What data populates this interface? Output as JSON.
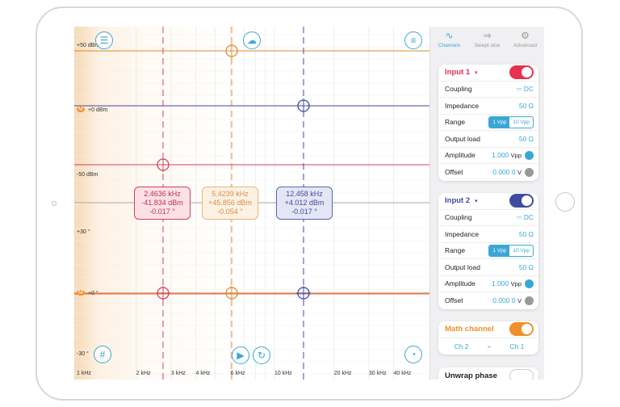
{
  "plot": {
    "y_labels": [
      "+50 dBm",
      "+0 dBm",
      "-50 dBm",
      "+30 °",
      "+0 °",
      "-30 °"
    ],
    "x_ticks": [
      {
        "f": 1,
        "label": "1 kHz"
      },
      {
        "f": 2,
        "label": "2 kHz"
      },
      {
        "f": 3,
        "label": "3 kHz"
      },
      {
        "f": 4,
        "label": "4 kHz"
      },
      {
        "f": 6,
        "label": "6 kHz"
      },
      {
        "f": 10,
        "label": "10 kHz"
      },
      {
        "f": 20,
        "label": "20 kHz"
      },
      {
        "f": 30,
        "label": "30 kHz"
      },
      {
        "f": 40,
        "label": "40 kHz"
      }
    ],
    "markers": [
      {
        "freq": "2.4636 kHz",
        "mag": "-41.834 dBm",
        "phase": "-0.017 °",
        "color": "#d2405a"
      },
      {
        "freq": "5.4239 kHz",
        "mag": "+45.856 dBm",
        "phase": "-0.054 °",
        "color": "#e08a2c"
      },
      {
        "freq": "12.458 kHz",
        "mag": "+4.012 dBm",
        "phase": "-0.017 °",
        "color": "#3f4aa0"
      }
    ],
    "math_badge": "M"
  },
  "tabs": [
    {
      "label": "Channels",
      "icon": "sine-wave-icon"
    },
    {
      "label": "Swept sine",
      "icon": "sweep-arrow-icon"
    },
    {
      "label": "Advanced",
      "icon": "gear-icon"
    }
  ],
  "input1": {
    "title": "Input 1",
    "coupling_label": "Coupling",
    "coupling": "DC",
    "coupling_sym": "⎓",
    "impedance_label": "Impedance",
    "impedance": "50 Ω",
    "range_label": "Range",
    "range_opts": [
      "1 Vpp",
      "10 Vpp"
    ],
    "load_label": "Output load",
    "load": "50 Ω",
    "amp_label": "Amplitude",
    "amp": "1.000",
    "amp_unit": "Vpp",
    "offset_label": "Offset",
    "offset": "0.000 0",
    "offset_unit": "V",
    "color": "#e8304f"
  },
  "input2": {
    "title": "Input 2",
    "coupling_label": "Coupling",
    "coupling": "DC",
    "coupling_sym": "⎓",
    "impedance_label": "Impedance",
    "impedance": "50 Ω",
    "range_label": "Range",
    "range_opts": [
      "1 Vpp",
      "10 Vpp"
    ],
    "load_label": "Output load",
    "load": "50 Ω",
    "amp_label": "Amplitude",
    "amp": "1.000",
    "amp_unit": "Vpp",
    "offset_label": "Offset",
    "offset": "0.000 0",
    "offset_unit": "V",
    "color": "#3f4aa0"
  },
  "math": {
    "title": "Math channel",
    "a": "Ch 2",
    "op": "÷",
    "b": "Ch 1",
    "color": "#f0902a"
  },
  "unwrap": {
    "label": "Unwrap phase"
  }
}
